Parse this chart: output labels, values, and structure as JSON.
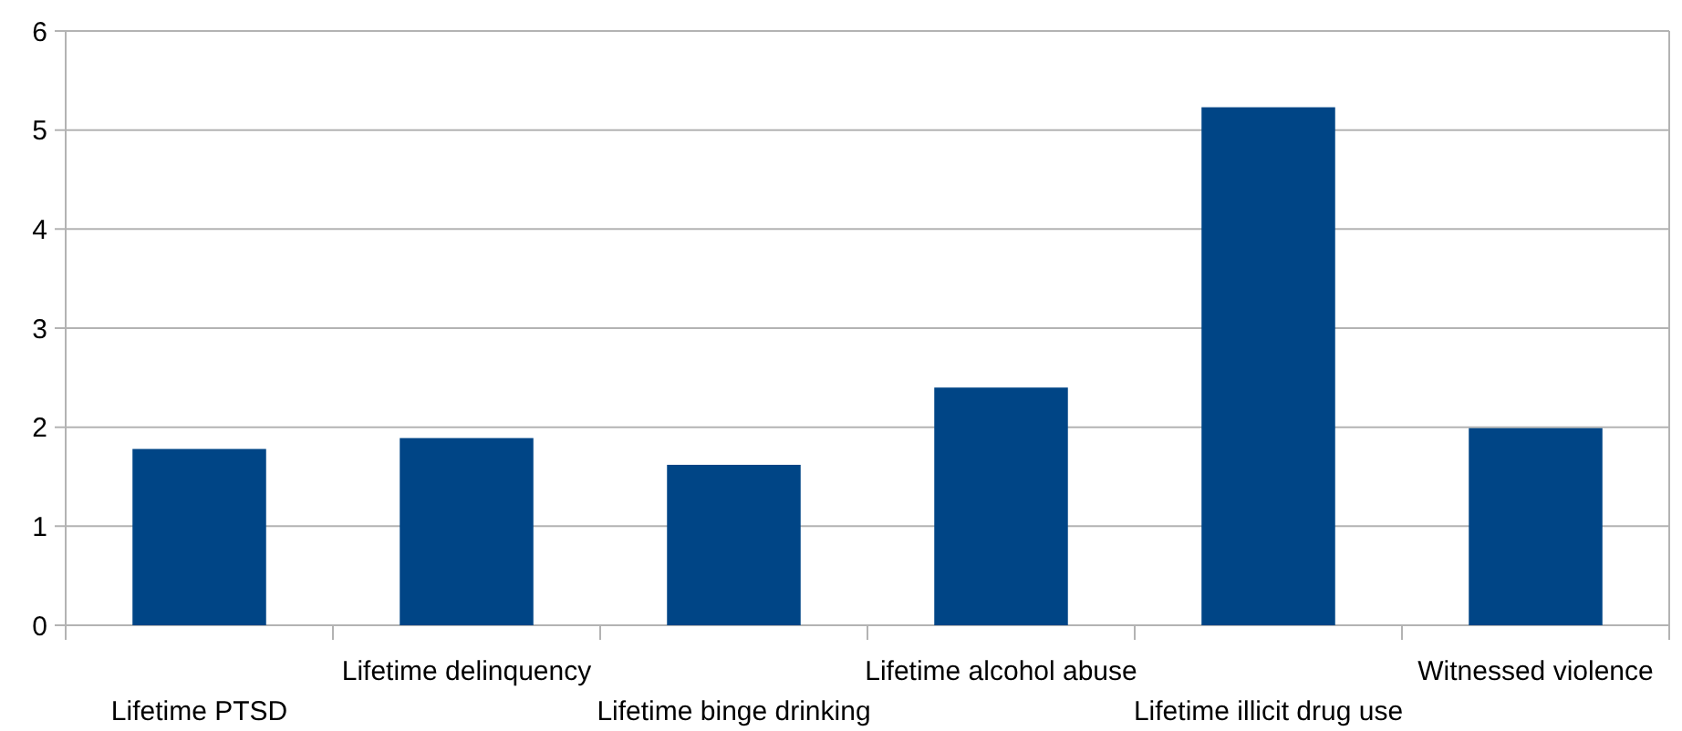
{
  "chart_data": {
    "type": "bar",
    "categories": [
      "Lifetime PTSD",
      "Lifetime delinquency",
      "Lifetime binge drinking",
      "Lifetime alcohol abuse",
      "Lifetime illicit drug use",
      "Witnessed violence"
    ],
    "values": [
      1.78,
      1.89,
      1.62,
      2.4,
      5.23,
      1.99
    ],
    "color": "#004586",
    "ylim": [
      0,
      6
    ],
    "yticks": [
      0,
      1,
      2,
      3,
      4,
      5,
      6
    ],
    "grid": "y"
  }
}
